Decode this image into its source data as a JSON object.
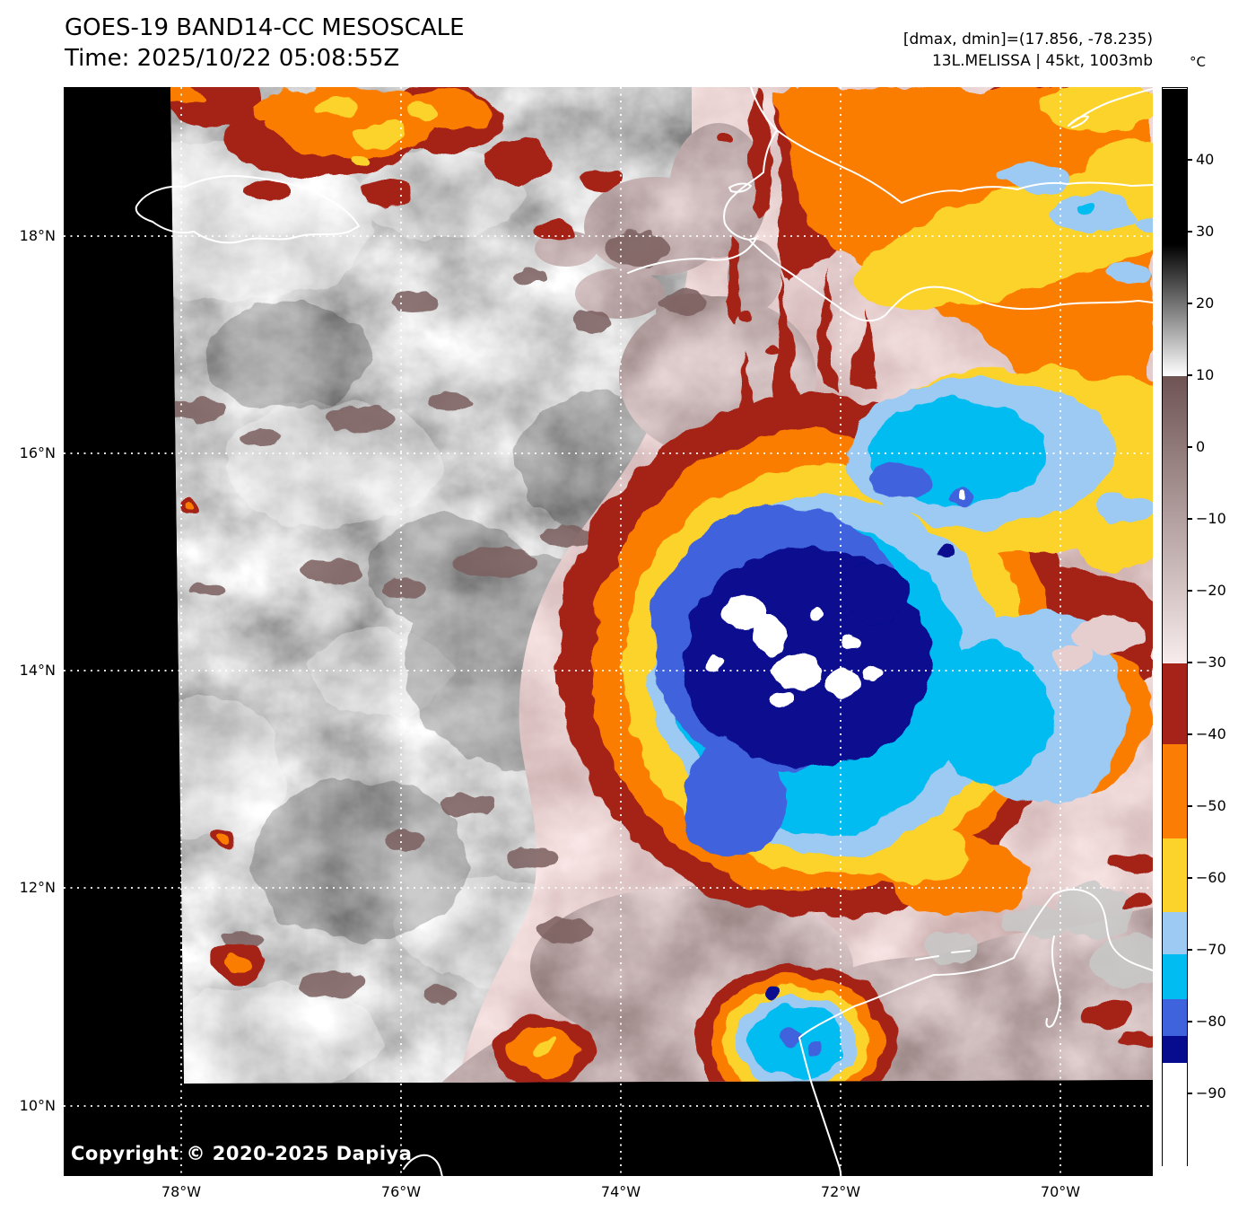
{
  "header": {
    "title": "GOES-19 BAND14-CC MESOSCALE",
    "time_line": "Time: 2025/10/22 05:08:55Z",
    "dmax_dmin": "[dmax, dmin]=(17.856, -78.235)",
    "storm_info": "13L.MELISSA | 45kt, 1003mb"
  },
  "map": {
    "copyright": "Copyright © 2020-2025 Dapiya",
    "lat_labels": [
      "18°N",
      "16°N",
      "14°N",
      "12°N",
      "10°N"
    ],
    "lon_labels": [
      "78°W",
      "76°W",
      "74°W",
      "72°W",
      "70°W"
    ]
  },
  "colorbar": {
    "unit": "°C",
    "tick_labels": [
      "40",
      "30",
      "20",
      "10",
      "0",
      "−10",
      "−20",
      "−30",
      "−40",
      "−50",
      "−60",
      "−70",
      "−80",
      "−90"
    ],
    "tick_values": [
      40,
      30,
      20,
      10,
      0,
      -10,
      -20,
      -30,
      -40,
      -50,
      -60,
      -70,
      -80,
      -90
    ],
    "range_top_c": 50,
    "range_bottom_c": -100,
    "segments": [
      {
        "from_c": 50,
        "to_c": 28.4,
        "color": "#000000"
      },
      {
        "from_c": 28.4,
        "to_c": 10,
        "color": "#000000",
        "color2": "#ffffff",
        "gradient": true
      },
      {
        "from_c": 10,
        "to_c": -30,
        "color": "#6e5353",
        "color2": "#f8ecec",
        "gradient": true
      },
      {
        "from_c": -30,
        "to_c": -41.2,
        "color": "#a52318"
      },
      {
        "from_c": -41.2,
        "to_c": -54.4,
        "color": "#fb7d05"
      },
      {
        "from_c": -54.4,
        "to_c": -64.6,
        "color": "#fcd32b"
      },
      {
        "from_c": -64.6,
        "to_c": -70.5,
        "color": "#9ccaf2"
      },
      {
        "from_c": -70.5,
        "to_c": -76.8,
        "color": "#00bcf0"
      },
      {
        "from_c": -76.8,
        "to_c": -81.9,
        "color": "#3f63dd"
      },
      {
        "from_c": -81.9,
        "to_c": -85.6,
        "color": "#070c8f"
      },
      {
        "from_c": -85.6,
        "to_c": -100,
        "color": "#ffffff"
      }
    ]
  }
}
